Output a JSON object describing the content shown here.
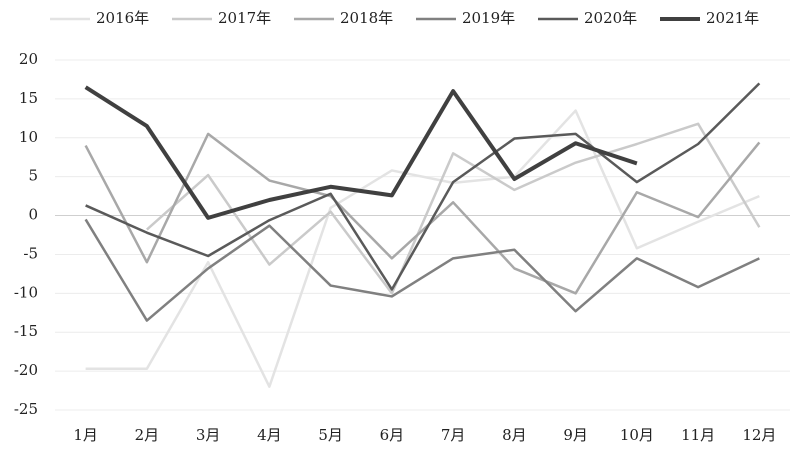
{
  "chart_data": {
    "type": "line",
    "categories": [
      "1月",
      "2月",
      "3月",
      "4月",
      "5月",
      "6月",
      "7月",
      "8月",
      "9月",
      "10月",
      "11月",
      "12月"
    ],
    "series": [
      {
        "name": "2016年",
        "color": "#e3e3e3",
        "values": [
          -19.7,
          -19.7,
          -6,
          -22,
          1,
          5.8,
          4.2,
          5,
          13.5,
          -4.2,
          -0.8,
          2.5
        ]
      },
      {
        "name": "2017年",
        "color": "#cacaca",
        "values": [
          null,
          -1.8,
          5.2,
          -6.3,
          0.5,
          -10,
          8,
          3.3,
          6.8,
          9.2,
          11.8,
          -1.5
        ]
      },
      {
        "name": "2018年",
        "color": "#a8a8a8",
        "values": [
          9,
          -6,
          10.5,
          4.5,
          2.5,
          -5.5,
          1.7,
          -6.8,
          -10,
          3,
          -0.2,
          9.4
        ]
      },
      {
        "name": "2019年",
        "color": "#808080",
        "values": [
          -0.5,
          -13.5,
          -6.8,
          -1.3,
          -9,
          -10.4,
          -5.5,
          -4.4,
          -12.3,
          -5.5,
          -9.2,
          -5.5
        ]
      },
      {
        "name": "2020年",
        "color": "#5a5a5a",
        "values": [
          1.3,
          -2.2,
          -5.2,
          -0.6,
          2.8,
          -9.5,
          4.3,
          9.9,
          10.5,
          4.3,
          9.2,
          17
        ]
      },
      {
        "name": "2021年",
        "color": "#404040",
        "values": [
          16.5,
          11.5,
          -0.3,
          2,
          3.7,
          2.6,
          16,
          4.7,
          9.3,
          6.7,
          null,
          null
        ]
      }
    ],
    "ylim": [
      -25,
      20
    ],
    "yticks": [
      -25,
      -20,
      -15,
      -10,
      -5,
      0,
      5,
      10,
      15,
      20
    ],
    "grid": true,
    "legend": "top"
  }
}
